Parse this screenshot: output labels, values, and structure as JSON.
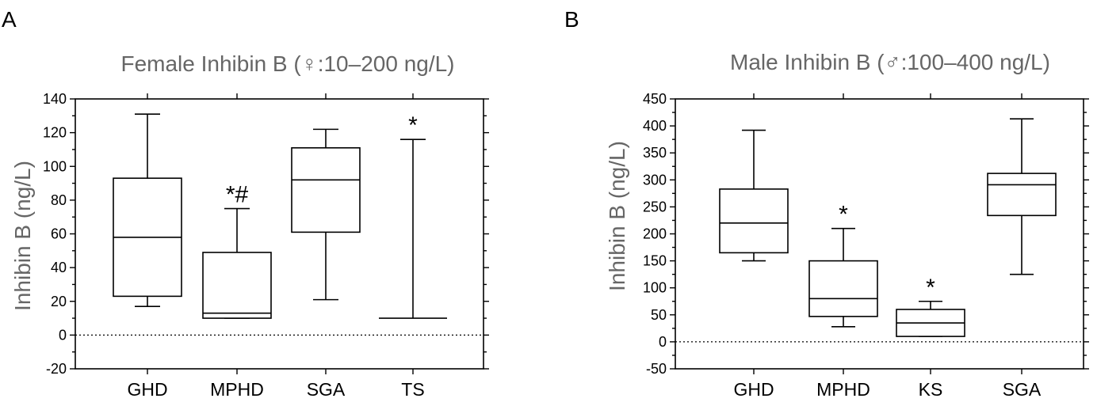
{
  "chart_data": [
    {
      "panel": "A",
      "type": "box",
      "title": "Female Inhibin B (♀:10–200 ng/L)",
      "ylabel": "Inhibin B (ng/L)",
      "xlabel": "",
      "ylim": [
        -20,
        140
      ],
      "yticks": [
        -20,
        0,
        20,
        40,
        60,
        80,
        100,
        120,
        140
      ],
      "reference_line": 0,
      "categories": [
        "GHD",
        "MPHD",
        "SGA",
        "TS"
      ],
      "boxes": [
        {
          "min": 17,
          "q1": 23,
          "median": 58,
          "q3": 93,
          "max": 131,
          "annotation": ""
        },
        {
          "min": 10,
          "q1": 10,
          "median": 13,
          "q3": 49,
          "max": 75,
          "annotation": "*#"
        },
        {
          "min": 21,
          "q1": 61,
          "median": 92,
          "q3": 111,
          "max": 122,
          "annotation": ""
        },
        {
          "min": 10,
          "q1": 10,
          "median": 10,
          "q3": 10,
          "max": 116,
          "annotation": "*"
        }
      ]
    },
    {
      "panel": "B",
      "type": "box",
      "title": "Male Inhibin B (♂:100–400 ng/L)",
      "ylabel": "Inhibin B (ng/L)",
      "xlabel": "",
      "ylim": [
        -50,
        450
      ],
      "yticks": [
        -50,
        0,
        50,
        100,
        150,
        200,
        250,
        300,
        350,
        400,
        450
      ],
      "reference_line": 0,
      "categories": [
        "GHD",
        "MPHD",
        "KS",
        "SGA"
      ],
      "boxes": [
        {
          "min": 150,
          "q1": 165,
          "median": 220,
          "q3": 283,
          "max": 392,
          "annotation": ""
        },
        {
          "min": 28,
          "q1": 47,
          "median": 80,
          "q3": 150,
          "max": 210,
          "annotation": "*"
        },
        {
          "min": 10,
          "q1": 10,
          "median": 35,
          "q3": 60,
          "max": 75,
          "annotation": "*"
        },
        {
          "min": 125,
          "q1": 234,
          "median": 291,
          "q3": 312,
          "max": 413,
          "annotation": ""
        }
      ]
    }
  ]
}
